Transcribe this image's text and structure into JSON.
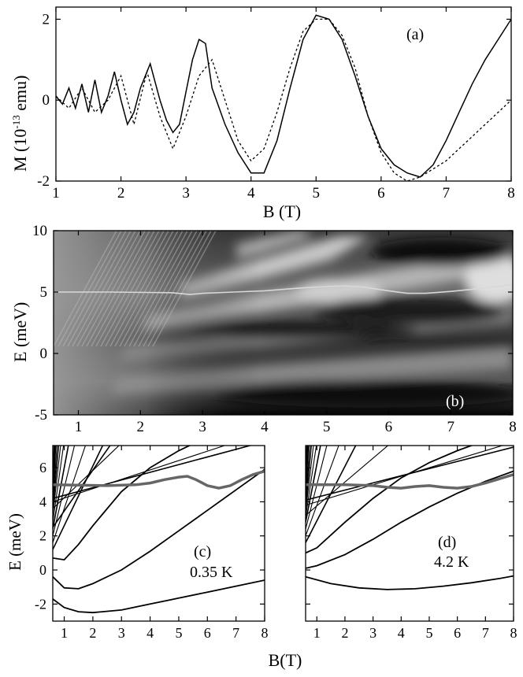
{
  "figure": {
    "xlabel_top": "B (T)",
    "xlabel_bottom": "B(T)"
  },
  "chart_data": [
    {
      "panel": "a",
      "type": "line",
      "label": "(a)",
      "xlabel": "B (T)",
      "ylabel": "M (10",
      "ylabel_exp": "-13",
      "ylabel_unit": " emu)",
      "xlim": [
        1,
        8
      ],
      "ylim": [
        -2,
        2.3
      ],
      "xticks": [
        1,
        2,
        3,
        4,
        5,
        6,
        7,
        8
      ],
      "yticks": [
        -2,
        0,
        2
      ],
      "series": [
        {
          "style": "solid",
          "x": [
            1.0,
            1.1,
            1.2,
            1.3,
            1.4,
            1.5,
            1.6,
            1.7,
            1.8,
            1.9,
            2.0,
            2.1,
            2.2,
            2.3,
            2.45,
            2.6,
            2.7,
            2.8,
            2.9,
            3.0,
            3.1,
            3.2,
            3.3,
            3.4,
            3.6,
            3.8,
            4.0,
            4.2,
            4.4,
            4.6,
            4.8,
            5.0,
            5.2,
            5.4,
            5.6,
            5.8,
            6.0,
            6.2,
            6.4,
            6.6,
            6.8,
            7.0,
            7.2,
            7.4,
            7.6,
            7.8,
            8.0
          ],
          "y": [
            0.1,
            -0.1,
            0.3,
            -0.2,
            0.4,
            -0.3,
            0.5,
            -0.3,
            0.1,
            0.7,
            0.0,
            -0.6,
            -0.3,
            0.3,
            0.9,
            0.0,
            -0.5,
            -0.8,
            -0.6,
            0.2,
            1.0,
            1.5,
            1.4,
            0.3,
            -0.6,
            -1.3,
            -1.8,
            -1.8,
            -1.0,
            0.3,
            1.5,
            2.1,
            2.0,
            1.5,
            0.6,
            -0.4,
            -1.2,
            -1.6,
            -1.8,
            -1.9,
            -1.6,
            -1.0,
            -0.3,
            0.4,
            1.0,
            1.5,
            2.0
          ]
        },
        {
          "style": "dashed",
          "x": [
            1.0,
            1.2,
            1.4,
            1.6,
            1.8,
            2.0,
            2.2,
            2.4,
            2.6,
            2.8,
            3.0,
            3.2,
            3.4,
            3.6,
            3.8,
            4.0,
            4.2,
            4.4,
            4.6,
            4.8,
            5.0,
            5.2,
            5.4,
            5.6,
            5.8,
            6.0,
            6.2,
            6.4,
            6.6,
            6.8,
            7.0,
            7.2,
            7.4,
            7.6,
            7.8,
            8.0
          ],
          "y": [
            0.1,
            -0.2,
            0.3,
            -0.3,
            0.0,
            0.6,
            -0.6,
            0.7,
            -0.4,
            -1.2,
            -0.4,
            0.6,
            1.0,
            0.0,
            -1.0,
            -1.5,
            -1.2,
            -0.3,
            0.8,
            1.7,
            2.0,
            2.0,
            1.6,
            0.8,
            -0.4,
            -1.3,
            -1.8,
            -2.0,
            -1.9,
            -1.7,
            -1.5,
            -1.2,
            -0.9,
            -0.6,
            -0.3,
            0.0
          ]
        }
      ]
    },
    {
      "panel": "b",
      "type": "heatmap",
      "label": "(b)",
      "ylabel": "E (meV)",
      "xlim": [
        0.6,
        8
      ],
      "ylim": [
        -5,
        10
      ],
      "xticks": [
        1,
        2,
        3,
        4,
        5,
        6,
        7,
        8
      ],
      "yticks": [
        -5,
        0,
        5,
        10
      ],
      "fermi_curve": {
        "x": [
          0.6,
          1.5,
          2.5,
          2.8,
          3.0,
          3.5,
          4.0,
          4.5,
          5.0,
          5.3,
          5.6,
          6.0,
          6.3,
          6.6,
          7.0,
          7.5,
          8.0
        ],
        "y": [
          5.0,
          5.0,
          4.95,
          4.8,
          4.9,
          5.0,
          5.1,
          5.3,
          5.45,
          5.5,
          5.4,
          5.1,
          4.9,
          4.9,
          5.05,
          5.3,
          5.6
        ]
      }
    },
    {
      "panel": "c",
      "type": "line",
      "label": "(c)",
      "temperature": "0.35 K",
      "ylabel": "E (meV)",
      "xlim": [
        0.6,
        8
      ],
      "ylim": [
        -3,
        7.3
      ],
      "xticks": [
        1,
        2,
        3,
        4,
        5,
        6,
        7,
        8
      ],
      "yticks": [
        -2,
        0,
        2,
        4,
        6
      ],
      "fermi_curve": {
        "x": [
          0.6,
          2.5,
          3.5,
          4.0,
          4.5,
          5.0,
          5.3,
          5.6,
          6.0,
          6.4,
          6.8,
          7.2,
          7.6,
          8.0
        ],
        "y": [
          5.0,
          4.95,
          5.0,
          5.1,
          5.3,
          5.45,
          5.5,
          5.3,
          4.95,
          4.8,
          4.95,
          5.3,
          5.6,
          5.8
        ]
      },
      "low_levels": [
        {
          "x": [
            0.6,
            1.0,
            1.5,
            2.0,
            3.0,
            4.0,
            5.0,
            6.0,
            7.0,
            8.0
          ],
          "y": [
            -1.7,
            -2.2,
            -2.45,
            -2.5,
            -2.35,
            -2.0,
            -1.65,
            -1.3,
            -0.95,
            -0.6
          ]
        },
        {
          "x": [
            0.6,
            1.0,
            1.5,
            2.0,
            3.0,
            4.0,
            5.0,
            6.0,
            7.0,
            8.0
          ],
          "y": [
            -0.4,
            -1.05,
            -1.1,
            -0.8,
            0.0,
            1.1,
            2.3,
            3.5,
            4.7,
            5.9
          ]
        },
        {
          "x": [
            0.6,
            1.0,
            1.5,
            2.0,
            3.0,
            4.0,
            5.0,
            6.0,
            7.0
          ],
          "y": [
            0.7,
            0.6,
            1.5,
            2.6,
            4.6,
            6.0,
            7.0,
            7.8,
            8.5
          ]
        }
      ]
    },
    {
      "panel": "d",
      "type": "line",
      "label": "(d)",
      "temperature": "4.2 K",
      "xlim": [
        0.6,
        8
      ],
      "ylim": [
        -3,
        7.3
      ],
      "xticks": [
        1,
        2,
        3,
        4,
        5,
        6,
        7,
        8
      ],
      "yticks": [
        -2,
        0,
        2,
        4,
        6
      ],
      "fermi_curve": {
        "x": [
          0.6,
          2.0,
          3.0,
          3.5,
          4.0,
          4.5,
          5.0,
          5.5,
          6.0,
          6.5,
          7.0,
          7.5,
          8.0
        ],
        "y": [
          5.0,
          5.0,
          4.95,
          4.85,
          4.8,
          4.9,
          4.95,
          4.85,
          4.8,
          4.9,
          5.1,
          5.35,
          5.6
        ]
      },
      "low_levels": [
        {
          "x": [
            0.6,
            1.5,
            2.5,
            3.5,
            4.5,
            5.5,
            6.5,
            7.5,
            8.0
          ],
          "y": [
            -0.4,
            -0.8,
            -1.05,
            -1.15,
            -1.1,
            -0.95,
            -0.75,
            -0.5,
            -0.35
          ]
        },
        {
          "x": [
            0.6,
            1.0,
            2.0,
            3.0,
            4.0,
            5.0,
            6.0,
            7.0,
            8.0
          ],
          "y": [
            0.1,
            0.25,
            0.9,
            1.8,
            2.8,
            3.7,
            4.5,
            5.2,
            5.8
          ]
        },
        {
          "x": [
            0.6,
            1.0,
            2.0,
            3.0,
            4.0,
            5.0,
            6.0,
            7.0
          ],
          "y": [
            1.0,
            1.3,
            2.8,
            4.2,
            5.4,
            6.3,
            7.0,
            7.6
          ]
        }
      ]
    }
  ]
}
